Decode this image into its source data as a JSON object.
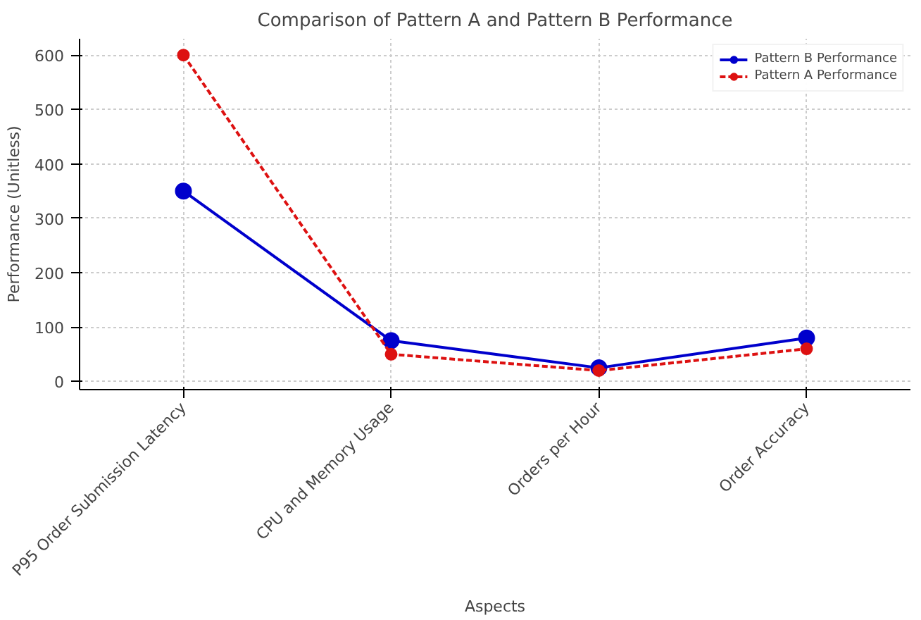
{
  "chart_data": {
    "type": "line",
    "title": "Comparison of Pattern A and Pattern B Performance",
    "xlabel": "Aspects",
    "ylabel": "Performance (Unitless)",
    "categories": [
      "P95 Order Submission Latency",
      "CPU and Memory Usage",
      "Orders per Hour",
      "Order Accuracy"
    ],
    "series": [
      {
        "name": "Pattern B Performance",
        "color": "#0000cc",
        "values": [
          350,
          75,
          25,
          80
        ],
        "line_style": "solid"
      },
      {
        "name": "Pattern A Performance",
        "color": "#dd1111",
        "values": [
          600,
          50,
          20,
          60
        ],
        "line_style": "dashed"
      }
    ],
    "ylim": [
      -15,
      630
    ],
    "yticks": [
      0,
      100,
      200,
      300,
      400,
      500,
      600
    ],
    "grid": true,
    "legend": "top right",
    "marker": "circle"
  }
}
